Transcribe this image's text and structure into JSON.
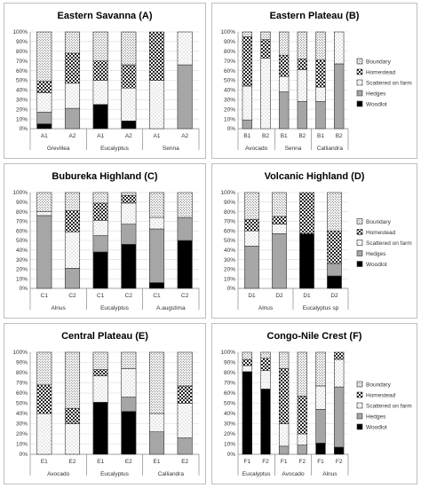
{
  "legend_labels": [
    "Boundary",
    "Homestead",
    "Scattered on farm",
    "Hedges",
    "Woodlot"
  ],
  "y_ticks": [
    "0%",
    "10%",
    "20%",
    "30%",
    "40%",
    "50%",
    "60%",
    "70%",
    "80%",
    "90%",
    "100%"
  ],
  "chart_data": [
    {
      "type": "bar",
      "title": "Eastern Savanna (A)",
      "stacked": true,
      "ylim": [
        0,
        100
      ],
      "groups": [
        {
          "name": "Grevillea",
          "categories": [
            "A1",
            "A2"
          ]
        },
        {
          "name": "Eucalyptus",
          "categories": [
            "A1",
            "A2"
          ]
        },
        {
          "name": "Senna",
          "categories": [
            "A1",
            "A2"
          ]
        }
      ],
      "categories": [
        "A1",
        "A2",
        "A1",
        "A2",
        "A1",
        "A2"
      ],
      "series": [
        {
          "name": "Woodlot",
          "values": [
            5,
            0,
            25,
            8,
            0,
            0
          ]
        },
        {
          "name": "Hedges",
          "values": [
            12,
            21,
            0,
            0,
            0,
            66
          ]
        },
        {
          "name": "Scattered on farm",
          "values": [
            20,
            26,
            25,
            34,
            50,
            34
          ]
        },
        {
          "name": "Homestead",
          "values": [
            12,
            31,
            20,
            24,
            50,
            0
          ]
        },
        {
          "name": "Boundary",
          "values": [
            51,
            22,
            30,
            34,
            0,
            0
          ]
        }
      ]
    },
    {
      "type": "bar",
      "title": "Eastern Plateau (B)",
      "stacked": true,
      "ylim": [
        0,
        100
      ],
      "groups": [
        {
          "name": "Avocado",
          "categories": [
            "B1",
            "B2"
          ]
        },
        {
          "name": "Senna",
          "categories": [
            "B1",
            "B2"
          ]
        },
        {
          "name": "Calliandra",
          "categories": [
            "B1",
            "B2"
          ]
        }
      ],
      "categories": [
        "B1",
        "B2",
        "B1",
        "B2",
        "B1",
        "B2"
      ],
      "series": [
        {
          "name": "Woodlot",
          "values": [
            0,
            0,
            0,
            0,
            0,
            0
          ]
        },
        {
          "name": "Hedges",
          "values": [
            9,
            0,
            38,
            28,
            28,
            67
          ]
        },
        {
          "name": "Scattered on farm",
          "values": [
            35,
            73,
            16,
            33,
            15,
            33
          ]
        },
        {
          "name": "Homestead",
          "values": [
            51,
            19,
            22,
            11,
            28,
            0
          ]
        },
        {
          "name": "Boundary",
          "values": [
            5,
            8,
            24,
            28,
            29,
            0
          ]
        }
      ]
    },
    {
      "type": "bar",
      "title": "Bubureka Highland (C)",
      "stacked": true,
      "ylim": [
        0,
        100
      ],
      "groups": [
        {
          "name": "Alnus",
          "categories": [
            "C1",
            "C2"
          ]
        },
        {
          "name": "Eucalyptus",
          "categories": [
            "C1",
            "C2"
          ]
        },
        {
          "name": "A.augstima",
          "categories": [
            "C1",
            "C2"
          ]
        }
      ],
      "categories": [
        "C1",
        "C2",
        "C1",
        "C2",
        "C1",
        "C2"
      ],
      "series": [
        {
          "name": "Woodlot",
          "values": [
            0,
            0,
            38,
            46,
            6,
            50
          ]
        },
        {
          "name": "Hedges",
          "values": [
            76,
            21,
            17,
            21,
            56,
            24
          ]
        },
        {
          "name": "Scattered on farm",
          "values": [
            4,
            38,
            16,
            22,
            12,
            0
          ]
        },
        {
          "name": "Homestead",
          "values": [
            0,
            22,
            18,
            8,
            0,
            0
          ]
        },
        {
          "name": "Boundary",
          "values": [
            20,
            19,
            11,
            3,
            26,
            26
          ]
        }
      ]
    },
    {
      "type": "bar",
      "title": "Volcanic Highland (D)",
      "stacked": true,
      "ylim": [
        0,
        100
      ],
      "groups": [
        {
          "name": "Alnus",
          "categories": [
            "D1",
            "D2"
          ]
        },
        {
          "name": "Eucalyptus sp",
          "categories": [
            "D1",
            "D2"
          ]
        }
      ],
      "categories": [
        "D1",
        "D2",
        "D1",
        "D2"
      ],
      "series": [
        {
          "name": "Woodlot",
          "values": [
            0,
            0,
            57,
            13
          ]
        },
        {
          "name": "Hedges",
          "values": [
            44,
            57,
            0,
            13
          ]
        },
        {
          "name": "Scattered on farm",
          "values": [
            16,
            10,
            0,
            0
          ]
        },
        {
          "name": "Homestead",
          "values": [
            12,
            8,
            43,
            34
          ]
        },
        {
          "name": "Boundary",
          "values": [
            28,
            25,
            0,
            40
          ]
        }
      ]
    },
    {
      "type": "bar",
      "title": "Central Plateau (E)",
      "stacked": true,
      "ylim": [
        0,
        100
      ],
      "groups": [
        {
          "name": "Avocado",
          "categories": [
            "E1",
            "E2"
          ]
        },
        {
          "name": "Eucalyptus",
          "categories": [
            "E1",
            "E2"
          ]
        },
        {
          "name": "Calliandra",
          "categories": [
            "E1",
            "E2"
          ]
        }
      ],
      "categories": [
        "E1",
        "E2",
        "E1",
        "E2",
        "E1",
        "E2"
      ],
      "series": [
        {
          "name": "Woodlot",
          "values": [
            0,
            0,
            51,
            42,
            0,
            0
          ]
        },
        {
          "name": "Hedges",
          "values": [
            0,
            0,
            0,
            14,
            22,
            16
          ]
        },
        {
          "name": "Scattered on farm",
          "values": [
            40,
            30,
            26,
            28,
            18,
            34
          ]
        },
        {
          "name": "Homestead",
          "values": [
            28,
            15,
            6,
            0,
            0,
            17
          ]
        },
        {
          "name": "Boundary",
          "values": [
            32,
            55,
            17,
            16,
            60,
            33
          ]
        }
      ]
    },
    {
      "type": "bar",
      "title": "Congo-Nile Crest (F)",
      "stacked": true,
      "ylim": [
        0,
        100
      ],
      "groups": [
        {
          "name": "Eucalyptus",
          "categories": [
            "F1",
            "F2"
          ]
        },
        {
          "name": "Avocado",
          "categories": [
            "F1",
            "F2"
          ]
        },
        {
          "name": "Alnus",
          "categories": [
            "F1",
            "F2"
          ]
        }
      ],
      "categories": [
        "F1",
        "F2",
        "F1",
        "F2",
        "F1",
        "F2"
      ],
      "series": [
        {
          "name": "Woodlot",
          "values": [
            81,
            64,
            0,
            0,
            11,
            7
          ]
        },
        {
          "name": "Hedges",
          "values": [
            0,
            0,
            8,
            9,
            33,
            59
          ]
        },
        {
          "name": "Scattered on farm",
          "values": [
            6,
            18,
            22,
            11,
            23,
            27
          ]
        },
        {
          "name": "Homestead",
          "values": [
            6,
            12,
            54,
            37,
            0,
            7
          ]
        },
        {
          "name": "Boundary",
          "values": [
            7,
            6,
            16,
            43,
            33,
            0
          ]
        }
      ]
    }
  ]
}
